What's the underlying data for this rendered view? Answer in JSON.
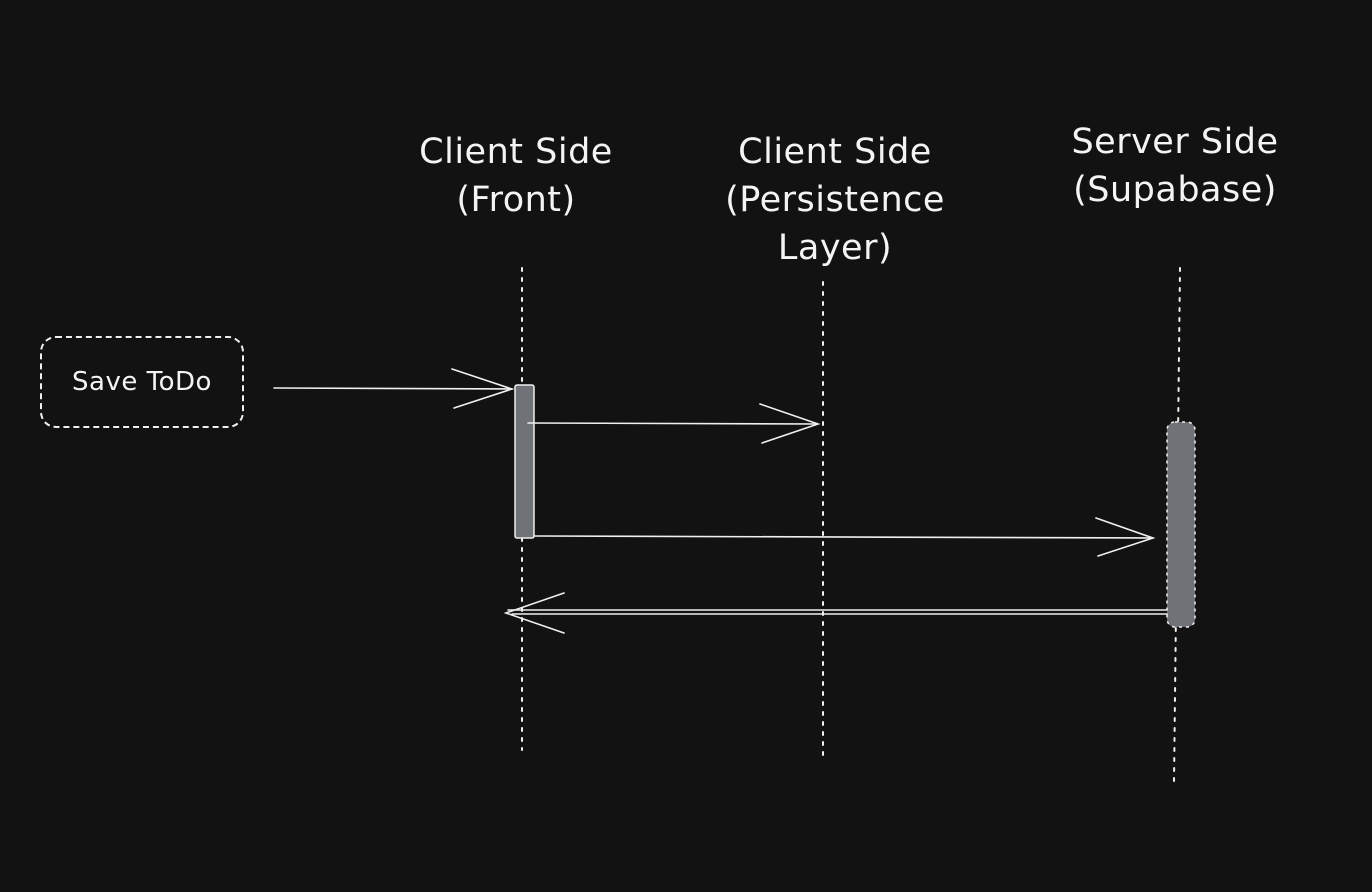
{
  "participants": [
    {
      "id": "front",
      "lines": [
        "Client Side",
        "(Front)"
      ]
    },
    {
      "id": "persistence",
      "lines": [
        "Client Side",
        "(Persistence",
        "Layer)"
      ]
    },
    {
      "id": "server",
      "lines": [
        "Server Side",
        "(Supabase)"
      ]
    }
  ],
  "trigger": {
    "label": "Save ToDo"
  },
  "colors": {
    "background": "#121212",
    "stroke": "#f0f0f0",
    "activation_fill": "#6f7377"
  }
}
